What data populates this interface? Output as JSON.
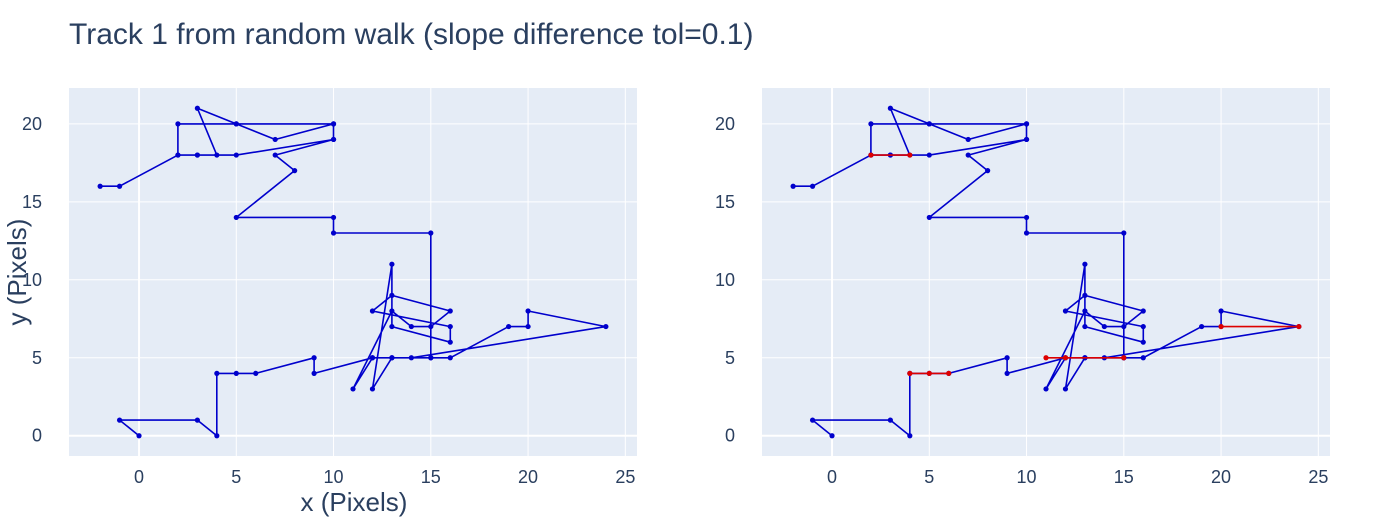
{
  "chart_data": {
    "title": "Track 1 from random walk (slope difference tol=0.1)",
    "xlabel": "x (Pixels)",
    "ylabel": "y (Pixels)",
    "colors": {
      "plot_bg": "#e5ecf6",
      "grid": "#ffffff",
      "track": "#0000cc",
      "highlight": "#dd0000",
      "text": "#2a3f5f"
    },
    "subplots": [
      {
        "type": "line",
        "xlim": [
          -3.6,
          25.6
        ],
        "ylim": [
          -1.3,
          22.3
        ],
        "x_ticks": [
          0,
          5,
          10,
          15,
          20,
          25
        ],
        "y_ticks": [
          0,
          5,
          10,
          15,
          20
        ],
        "series": [
          {
            "role": "track",
            "x": [
              0,
              -1,
              3,
              4,
              4,
              5,
              6,
              9,
              9,
              12,
              11,
              13,
              14,
              15,
              16,
              13,
              12,
              16,
              16,
              13,
              13,
              12,
              13,
              15,
              16,
              19,
              20,
              20,
              24,
              14,
              12,
              13,
              15,
              15,
              10,
              10,
              5,
              8,
              7,
              10,
              10,
              7,
              5,
              3,
              4,
              3,
              2,
              2,
              5,
              10,
              10,
              5,
              3,
              2,
              -1,
              -2
            ],
            "y": [
              0,
              1,
              1,
              0,
              4,
              4,
              4,
              5,
              4,
              5,
              3,
              8,
              7,
              7,
              8,
              9,
              8,
              7,
              6,
              7,
              11,
              3,
              5,
              5,
              5,
              7,
              7,
              8,
              7,
              5,
              5,
              5,
              5,
              13,
              13,
              14,
              14,
              17,
              18,
              19,
              20,
              19,
              20,
              21,
              18,
              18,
              18,
              20,
              20,
              20,
              19,
              18,
              18,
              18,
              16,
              16
            ]
          }
        ]
      },
      {
        "type": "line",
        "xlim": [
          -3.6,
          25.6
        ],
        "ylim": [
          -1.3,
          22.3
        ],
        "x_ticks": [
          0,
          5,
          10,
          15,
          20,
          25
        ],
        "y_ticks": [
          0,
          5,
          10,
          15,
          20
        ],
        "series": [
          {
            "role": "track",
            "x": [
              0,
              -1,
              3,
              4,
              4,
              5,
              6,
              9,
              9,
              12,
              11,
              13,
              14,
              15,
              16,
              13,
              12,
              16,
              16,
              13,
              13,
              12,
              13,
              15,
              16,
              19,
              20,
              20,
              24,
              14,
              12,
              13,
              15,
              15,
              10,
              10,
              5,
              8,
              7,
              10,
              10,
              7,
              5,
              3,
              4,
              3,
              2,
              2,
              5,
              10,
              10,
              5,
              3,
              2,
              -1,
              -2
            ],
            "y": [
              0,
              1,
              1,
              0,
              4,
              4,
              4,
              5,
              4,
              5,
              3,
              8,
              7,
              7,
              8,
              9,
              8,
              7,
              6,
              7,
              11,
              3,
              5,
              5,
              5,
              7,
              7,
              8,
              7,
              5,
              5,
              5,
              5,
              13,
              13,
              14,
              14,
              17,
              18,
              19,
              20,
              19,
              20,
              21,
              18,
              18,
              18,
              20,
              20,
              20,
              19,
              18,
              18,
              18,
              16,
              16
            ]
          },
          {
            "role": "highlight",
            "x": [
              4,
              5,
              6
            ],
            "y": [
              4,
              4,
              4
            ]
          },
          {
            "role": "highlight",
            "x": [
              11,
              12,
              15
            ],
            "y": [
              5,
              5,
              5
            ]
          },
          {
            "role": "highlight",
            "x": [
              20,
              24
            ],
            "y": [
              7,
              7
            ]
          },
          {
            "role": "highlight",
            "x": [
              2,
              4
            ],
            "y": [
              18,
              18
            ]
          }
        ]
      }
    ]
  }
}
